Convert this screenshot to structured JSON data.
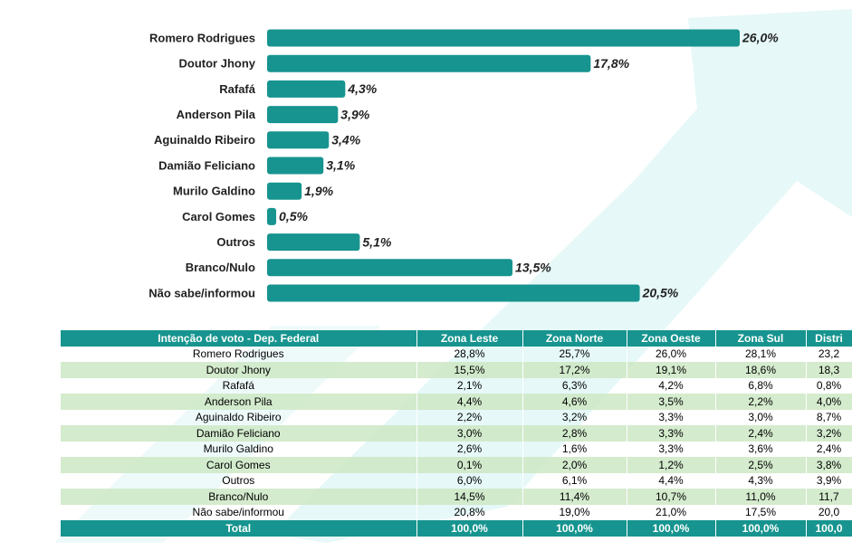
{
  "chart_data": {
    "type": "bar",
    "orientation": "horizontal",
    "color": "#17948f",
    "categories": [
      "Romero Rodrigues",
      "Doutor Jhony",
      "Rafafá",
      "Anderson Pila",
      "Aguinaldo Ribeiro",
      "Damião Feliciano",
      "Murilo Galdino",
      "Carol Gomes",
      "Outros",
      "Branco/Nulo",
      "Não sabe/informou"
    ],
    "values": [
      26.0,
      17.8,
      4.3,
      3.9,
      3.4,
      3.1,
      1.9,
      0.5,
      5.1,
      13.5,
      20.5
    ],
    "value_labels": [
      "26,0%",
      "17,8%",
      "4,3%",
      "3,9%",
      "3,4%",
      "3,1%",
      "1,9%",
      "0,5%",
      "5,1%",
      "13,5%",
      "20,5%"
    ]
  },
  "table": {
    "header": [
      "Intenção de voto - Dep. Federal",
      "Zona Leste",
      "Zona Norte",
      "Zona Oeste",
      "Zona Sul",
      "Distri"
    ],
    "rows": [
      [
        "Romero Rodrigues",
        "28,8%",
        "25,7%",
        "26,0%",
        "28,1%",
        "23,2"
      ],
      [
        "Doutor Jhony",
        "15,5%",
        "17,2%",
        "19,1%",
        "18,6%",
        "18,3"
      ],
      [
        "Rafafá",
        "2,1%",
        "6,3%",
        "4,2%",
        "6,8%",
        "0,8%"
      ],
      [
        "Anderson Pila",
        "4,4%",
        "4,6%",
        "3,5%",
        "2,2%",
        "4,0%"
      ],
      [
        "Aguinaldo Ribeiro",
        "2,2%",
        "3,2%",
        "3,3%",
        "3,0%",
        "8,7%"
      ],
      [
        "Damião Feliciano",
        "3,0%",
        "2,8%",
        "3,3%",
        "2,4%",
        "3,2%"
      ],
      [
        "Murilo Galdino",
        "2,6%",
        "1,6%",
        "3,3%",
        "3,6%",
        "2,4%"
      ],
      [
        "Carol Gomes",
        "0,1%",
        "2,0%",
        "1,2%",
        "2,5%",
        "3,8%"
      ],
      [
        "Outros",
        "6,0%",
        "6,1%",
        "4,4%",
        "4,3%",
        "3,9%"
      ],
      [
        "Branco/Nulo",
        "14,5%",
        "11,4%",
        "10,7%",
        "11,0%",
        "11,7"
      ],
      [
        "Não sabe/informou",
        "20,8%",
        "19,0%",
        "21,0%",
        "17,5%",
        "20,0"
      ]
    ],
    "total": [
      "Total",
      "100,0%",
      "100,0%",
      "100,0%",
      "100,0%",
      "100,0"
    ]
  }
}
